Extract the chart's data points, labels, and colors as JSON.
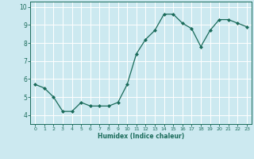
{
  "x": [
    0,
    1,
    2,
    3,
    4,
    5,
    6,
    7,
    8,
    9,
    10,
    11,
    12,
    13,
    14,
    15,
    16,
    17,
    18,
    19,
    20,
    21,
    22,
    23
  ],
  "y": [
    5.7,
    5.5,
    5.0,
    4.2,
    4.2,
    4.7,
    4.5,
    4.5,
    4.5,
    4.7,
    5.7,
    7.4,
    8.2,
    8.7,
    9.6,
    9.6,
    9.1,
    8.8,
    7.8,
    8.7,
    9.3,
    9.3,
    9.1,
    8.9
  ],
  "line_color": "#1a6b5a",
  "marker": "D",
  "marker_size": 2.0,
  "bg_color": "#cce9f0",
  "grid_color": "#ffffff",
  "xlabel": "Humidex (Indice chaleur)",
  "xlabel_color": "#1a6b5a",
  "tick_color": "#1a6b5a",
  "ylim": [
    3.5,
    10.3
  ],
  "xlim": [
    -0.5,
    23.5
  ],
  "yticks": [
    4,
    5,
    6,
    7,
    8,
    9,
    10
  ],
  "xticks": [
    0,
    1,
    2,
    3,
    4,
    5,
    6,
    7,
    8,
    9,
    10,
    11,
    12,
    13,
    14,
    15,
    16,
    17,
    18,
    19,
    20,
    21,
    22,
    23
  ]
}
